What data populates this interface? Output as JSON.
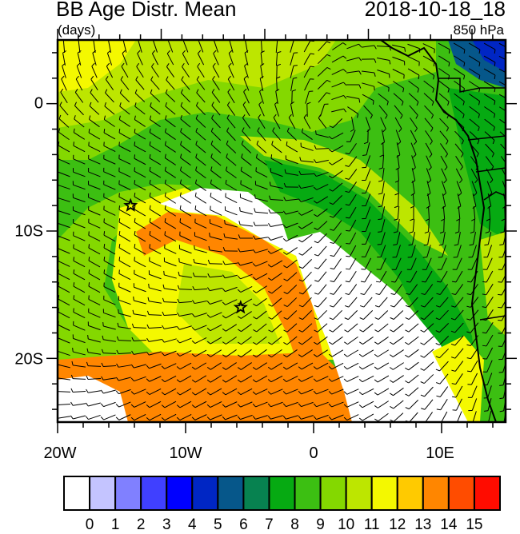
{
  "title": "BB Age Distr. Mean",
  "datetime": "2018-10-18_18",
  "units": "(days)",
  "level": "850 hPa",
  "map": {
    "lon_range": [
      -20,
      15
    ],
    "lat_range": [
      -25,
      5
    ],
    "lon_labels": [
      "20W",
      "10W",
      "0",
      "10E"
    ],
    "lat_labels": [
      "0",
      "10S",
      "20S"
    ],
    "markers": [
      {
        "name": "star",
        "lon": -14.3,
        "lat": -8
      },
      {
        "name": "star",
        "lon": -5.7,
        "lat": -16
      }
    ],
    "overlay": "wind-barbs"
  },
  "colorbar": {
    "labels": [
      "0",
      "1",
      "2",
      "3",
      "4",
      "5",
      "6",
      "7",
      "8",
      "9",
      "10",
      "11",
      "12",
      "13",
      "14",
      "15"
    ],
    "colors": [
      "#ffffff",
      "#c4c4ff",
      "#8080ff",
      "#4040ff",
      "#0000ff",
      "#0026c4",
      "#06578a",
      "#078250",
      "#06aa12",
      "#3cbf12",
      "#84d800",
      "#bde600",
      "#f4f800",
      "#ffca00",
      "#ff8600",
      "#ff4c00",
      "#ff0c00"
    ]
  }
}
